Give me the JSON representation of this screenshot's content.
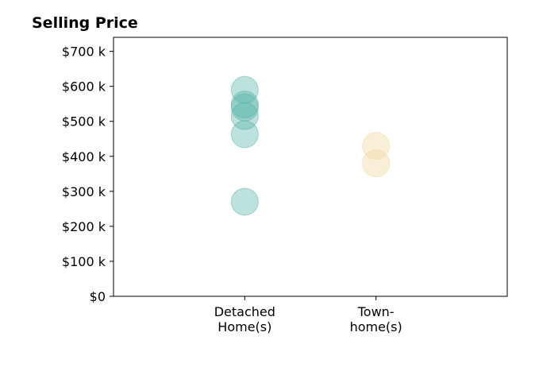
{
  "chart_data": {
    "type": "scatter",
    "title": "Selling Price",
    "xlabel": "",
    "ylabel": "",
    "categories": [
      "Detached\nHome(s)",
      "Town-\nhome(s)"
    ],
    "yticks": [
      0,
      100000,
      200000,
      300000,
      400000,
      500000,
      600000,
      700000
    ],
    "ytick_labels": [
      "$0",
      "$100 k",
      "$200 k",
      "$300 k",
      "$400 k",
      "$500 k",
      "$600 k",
      "$700 k"
    ],
    "ylim": [
      0,
      740000
    ],
    "xlim": [
      -1,
      2
    ],
    "grid": false,
    "series": [
      {
        "category": 0,
        "color": "#5ab4a8",
        "values": [
          590000,
          548000,
          540000,
          515000,
          463000,
          270000
        ]
      },
      {
        "category": 1,
        "color": "#efd8a0",
        "values": [
          430000,
          380000
        ]
      }
    ]
  }
}
